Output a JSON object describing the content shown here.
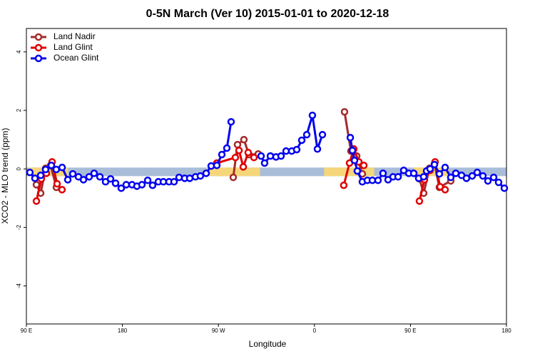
{
  "chart_data": {
    "type": "line",
    "title": "0-5N March (Ver 10)   2015-01-01 to 2020-12-18",
    "x_label": "Longitude",
    "y_label": "XCO2 - MLO trend (ppm)",
    "xlim": [
      90,
      540
    ],
    "xticks": [
      {
        "value": 90,
        "label": "90 E"
      },
      180,
      {
        "value": 270,
        "label": "90 W"
      },
      {
        "value": 360,
        "label": "0"
      },
      {
        "value": 450,
        "label": "90 E"
      },
      {
        "value": 540,
        "label": "180"
      }
    ],
    "ylim": [
      -5.3,
      4.8
    ],
    "yticks": [
      -4,
      -2,
      0,
      2,
      4
    ],
    "legend": "top-left",
    "band": {
      "y": -0.1,
      "color": "#a9bdd9",
      "land_color": "#f5d67a",
      "land": [
        [
          92,
          129
        ],
        [
          259,
          309
        ],
        [
          369,
          416
        ],
        [
          453,
          486
        ]
      ]
    },
    "series": [
      {
        "name": "Land Nadir",
        "color": "#a52a2a",
        "x": [
          99.4,
          103.4,
          108,
          112.7,
          118.1,
          null,
          283.9,
          287.9,
          293.9,
          298.6,
          303.3,
          307.3,
          null,
          388.2,
          394.2,
          399.6,
          404.9,
          null,
          458.4,
          462.4,
          467.8,
          472.5,
          477.1,
          487.8
        ],
        "values": [
          -0.54,
          -0.83,
          0.02,
          0.12,
          -0.63,
          null,
          -0.29,
          0.83,
          1.0,
          0.49,
          0.41,
          0.51,
          null,
          1.95,
          0.61,
          0.44,
          -0.17,
          null,
          -0.34,
          -0.83,
          0.02,
          0.17,
          -0.63,
          -0.41
        ]
      },
      {
        "name": "Land Glint",
        "color": "#e00000",
        "x": [
          99.4,
          104,
          108.7,
          114.1,
          118.8,
          123.4,
          null,
          268.5,
          285.9,
          289.3,
          293.3,
          297.9,
          303.3,
          null,
          387.5,
          392.9,
          396.9,
          401.6,
          406.3,
          null,
          458.4,
          463.1,
          468.4,
          473.1,
          477.8,
          482.5
        ],
        "values": [
          -1.1,
          -0.34,
          -0.15,
          0.24,
          -0.51,
          -0.71,
          null,
          0.2,
          0.39,
          0.63,
          0.07,
          0.56,
          0.39,
          null,
          -0.56,
          0.2,
          0.68,
          0.24,
          0.12,
          null,
          -1.1,
          -0.37,
          -0.05,
          0.24,
          -0.61,
          -0.71
        ]
      },
      {
        "name": "Ocean Glint",
        "color": "#0000ee",
        "x": [
          93.3,
          98,
          103.4,
          108,
          113.4,
          118,
          123.5,
          128.8,
          133.5,
          138.8,
          143.5,
          148.8,
          153.5,
          158.9,
          164.2,
          168.9,
          173.6,
          178.9,
          183.6,
          189,
          193.6,
          198.3,
          203.7,
          208.3,
          213.7,
          218.4,
          223.7,
          228.4,
          233.1,
          238.4,
          243.1,
          248.5,
          253.1,
          258.5,
          263.2,
          268.5,
          273.2,
          277.9,
          281.9,
          null,
          310,
          313.3,
          318.7,
          324,
          328.7,
          333.4,
          338.7,
          343.4,
          348.1,
          352.8,
          358.1,
          362.8,
          367.5,
          null,
          393.6,
          395.6,
          397.6,
          400.2,
          404.9,
          409.6,
          414.3,
          419.6,
          424.3,
          429,
          433.7,
          438.4,
          443.7,
          448.4,
          453.1,
          457.7,
          462.4,
          465.1,
          468.4,
          472.5,
          477.1,
          482.5,
          487.8,
          492.5,
          497.9,
          502.5,
          507.9,
          512.6,
          517.9,
          522.6,
          528,
          532.6,
          538
        ],
        "values": [
          -0.12,
          -0.32,
          -0.22,
          -0.02,
          0.12,
          -0.02,
          0.05,
          -0.37,
          -0.17,
          -0.27,
          -0.37,
          -0.27,
          -0.15,
          -0.27,
          -0.44,
          -0.34,
          -0.49,
          -0.66,
          -0.54,
          -0.54,
          -0.59,
          -0.54,
          -0.39,
          -0.56,
          -0.44,
          -0.44,
          -0.44,
          -0.44,
          -0.29,
          -0.32,
          -0.32,
          -0.27,
          -0.24,
          -0.15,
          0.1,
          0.12,
          0.49,
          0.71,
          1.61,
          null,
          0.44,
          0.2,
          0.44,
          0.41,
          0.44,
          0.61,
          0.61,
          0.66,
          0.98,
          1.17,
          1.83,
          0.68,
          1.17,
          null,
          1.07,
          0.63,
          0.29,
          -0.07,
          -0.44,
          -0.39,
          -0.39,
          -0.39,
          -0.15,
          -0.37,
          -0.27,
          -0.27,
          -0.05,
          -0.15,
          -0.15,
          -0.32,
          -0.27,
          -0.07,
          0,
          0.15,
          -0.17,
          0.05,
          -0.29,
          -0.15,
          -0.22,
          -0.32,
          -0.24,
          -0.12,
          -0.24,
          -0.41,
          -0.29,
          -0.46,
          -0.66
        ]
      }
    ]
  }
}
